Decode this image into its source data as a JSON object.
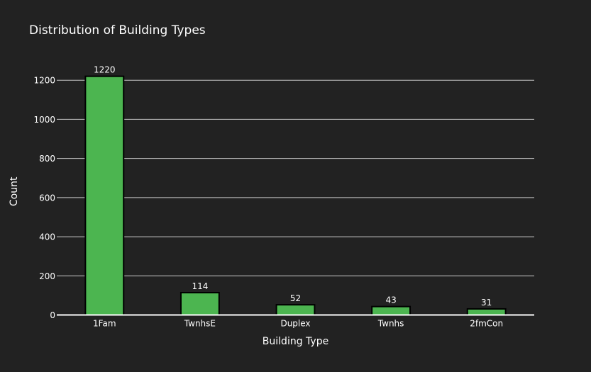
{
  "chart_data": {
    "type": "bar",
    "title": "Distribution of Building Types",
    "xlabel": "Building Type",
    "ylabel": "Count",
    "categories": [
      "1Fam",
      "TwnhsE",
      "Duplex",
      "Twnhs",
      "2fmCon"
    ],
    "values": [
      1220,
      114,
      52,
      43,
      31
    ],
    "data_labels": [
      "1220",
      "114",
      "52",
      "43",
      "31"
    ],
    "y_ticks": [
      0,
      200,
      400,
      600,
      800,
      1000,
      1200
    ],
    "ylim": [
      0,
      1284
    ],
    "grid": true,
    "legend": "none",
    "colors": {
      "background": "#222222",
      "bar_fill": "#4CB550",
      "bar_stroke": "#000000",
      "grid": "#c8c8c8",
      "zero_line": "#ffffff",
      "text": "#ffffff"
    }
  }
}
